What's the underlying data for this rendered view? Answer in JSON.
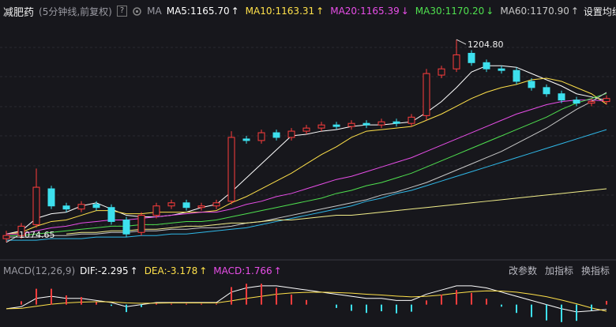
{
  "header": {
    "title": "减肥药",
    "subtitle": "(5分钟线,前复权)",
    "help": "?",
    "ma_label": "MA",
    "ma_settings": "设置均线"
  },
  "chart_data": [
    {
      "type": "candlestick",
      "open": [
        1077,
        1079,
        1086,
        1109,
        1098,
        1096,
        1099,
        1097,
        1089,
        1081,
        1092,
        1098,
        1100,
        1097,
        1098,
        1101,
        1141,
        1140,
        1145,
        1142,
        1146,
        1148,
        1150,
        1149,
        1151,
        1150,
        1152,
        1151,
        1156,
        1182,
        1186,
        1196,
        1190,
        1186,
        1185,
        1178,
        1174,
        1170,
        1166,
        1164,
        1165
      ],
      "high": [
        1082,
        1087,
        1122,
        1111,
        1100,
        1101,
        1101,
        1099,
        1091,
        1094,
        1100,
        1102,
        1102,
        1100,
        1102,
        1146,
        1143,
        1147,
        1147,
        1148,
        1150,
        1152,
        1152,
        1153,
        1153,
        1154,
        1154,
        1157,
        1186,
        1188,
        1204.8,
        1198,
        1192,
        1188,
        1187,
        1180,
        1176,
        1172,
        1168,
        1167,
        1169
      ],
      "low": [
        1074.65,
        1077,
        1084,
        1096,
        1094,
        1094,
        1095,
        1086,
        1078,
        1079,
        1090,
        1096,
        1095,
        1095,
        1096,
        1099,
        1138,
        1138,
        1140,
        1140,
        1144,
        1146,
        1147,
        1147,
        1148,
        1148,
        1149,
        1149,
        1153,
        1180,
        1184,
        1188,
        1184,
        1183,
        1176,
        1172,
        1168,
        1164,
        1162,
        1162,
        1163
      ],
      "close": [
        1079,
        1085,
        1110,
        1098,
        1096,
        1099,
        1097,
        1088,
        1080,
        1092,
        1098,
        1100,
        1097,
        1098,
        1100,
        1142,
        1140,
        1145,
        1142,
        1146,
        1148,
        1150,
        1149,
        1151,
        1150,
        1152,
        1151,
        1155,
        1183,
        1186,
        1195,
        1190,
        1186,
        1185,
        1178,
        1174,
        1170,
        1166,
        1164,
        1165,
        1167
      ],
      "up_color": "#ff3d3d",
      "down_color": "#3de0ee",
      "ylim": [
        1072,
        1215
      ],
      "max_label": "1204.80",
      "min_label": "1074.65",
      "series": [
        {
          "name": "MA5:1165.70",
          "arrow": "↑",
          "color": "#ffffff",
          "values": [
            1080,
            1082,
            1090,
            1093,
            1094,
            1098,
            1100,
            1096,
            1092,
            1091,
            1091,
            1092,
            1094,
            1097,
            1099,
            1107,
            1116,
            1125,
            1134,
            1143,
            1144,
            1146,
            1147,
            1149,
            1150,
            1150,
            1151,
            1152,
            1158,
            1165,
            1174,
            1184,
            1188,
            1188,
            1187,
            1183,
            1179,
            1175,
            1170,
            1168,
            1165.7
          ]
        },
        {
          "name": "MA10:1163.31",
          "arrow": "↑",
          "color": "#ffe14a",
          "values": [
            1080,
            1081,
            1085,
            1088,
            1089,
            1092,
            1095,
            1095,
            1093,
            1093,
            1094,
            1094,
            1094,
            1094,
            1095,
            1100,
            1104,
            1109,
            1114,
            1119,
            1125,
            1131,
            1136,
            1142,
            1146,
            1147,
            1148,
            1149,
            1153,
            1157,
            1162,
            1167,
            1171,
            1174,
            1176,
            1179,
            1180,
            1178,
            1174,
            1170,
            1163.31
          ]
        },
        {
          "name": "MA20:1165.39",
          "arrow": "↓",
          "color": "#e84ee8",
          "values": [
            1080,
            1080,
            1082,
            1084,
            1085,
            1087,
            1088,
            1089,
            1089,
            1090,
            1091,
            1092,
            1093,
            1094,
            1094,
            1096,
            1099,
            1101,
            1104,
            1106,
            1109,
            1112,
            1115,
            1117,
            1120,
            1123,
            1126,
            1129,
            1133,
            1137,
            1141,
            1145,
            1149,
            1153,
            1157,
            1160,
            1163,
            1165,
            1166,
            1166,
            1165.39
          ]
        },
        {
          "name": "MA30:1170.20",
          "arrow": "↓",
          "color": "#4fe04f",
          "values": [
            1079,
            1079,
            1080,
            1081,
            1082,
            1083,
            1084,
            1085,
            1085,
            1086,
            1086,
            1087,
            1088,
            1088,
            1089,
            1091,
            1093,
            1095,
            1097,
            1099,
            1101,
            1103,
            1106,
            1108,
            1111,
            1113,
            1116,
            1119,
            1123,
            1127,
            1131,
            1135,
            1139,
            1143,
            1147,
            1151,
            1155,
            1160,
            1164,
            1167,
            1170.2
          ]
        },
        {
          "name": "MA60:1170.90",
          "arrow": "↑",
          "color": "#c8c8c8",
          "values": [
            1078,
            1078,
            1078,
            1079,
            1079,
            1080,
            1080,
            1081,
            1081,
            1082,
            1082,
            1083,
            1083,
            1084,
            1084,
            1085,
            1087,
            1088,
            1090,
            1092,
            1094,
            1096,
            1098,
            1100,
            1102,
            1105,
            1107,
            1110,
            1113,
            1117,
            1121,
            1125,
            1129,
            1133,
            1138,
            1143,
            1148,
            1154,
            1160,
            1165,
            1170.9
          ]
        },
        {
          "color": "#2fb8e8",
          "values": [
            1076,
            1076,
            1076,
            1077,
            1077,
            1077,
            1078,
            1078,
            1078,
            1079,
            1079,
            1080,
            1080,
            1081,
            1082,
            1083,
            1084,
            1086,
            1088,
            1090,
            1092,
            1094,
            1096,
            1098,
            1101,
            1103,
            1106,
            1108,
            1111,
            1114,
            1117,
            1120,
            1123,
            1126,
            1129,
            1132,
            1135,
            1138,
            1141,
            1144,
            1147
          ]
        },
        {
          "color": "#f2ee8a",
          "values": [
            null,
            null,
            null,
            null,
            1080,
            1081,
            1081,
            1082,
            1082,
            1083,
            1083,
            1084,
            1085,
            1085,
            1086,
            1087,
            1087,
            1088,
            1089,
            1089,
            1090,
            1091,
            1092,
            1092,
            1093,
            1094,
            1095,
            1096,
            1097,
            1098,
            1099,
            1100,
            1101,
            1102,
            1103,
            1104,
            1105,
            1106,
            1107,
            1108,
            1109
          ]
        }
      ]
    },
    {
      "type": "macd",
      "title": "MACD(12,26,9)",
      "ylim": [
        -10,
        12
      ],
      "buttons": [
        "改参数",
        "加指标",
        "换指标"
      ],
      "series": [
        {
          "name": "DIF:-2.295",
          "arrow": "↑",
          "color": "#ffffff",
          "values": [
            -2,
            -1,
            3,
            4,
            3,
            3,
            2,
            1,
            -1,
            0,
            1,
            1,
            1,
            1,
            1,
            6,
            8,
            9,
            9,
            8,
            7,
            6,
            5,
            4,
            3,
            3,
            2,
            2,
            5,
            7,
            9,
            9,
            8,
            6,
            4,
            2,
            0,
            -2,
            -3.5,
            -3,
            -2.295
          ]
        },
        {
          "name": "DEA:-3.178",
          "arrow": "↑",
          "color": "#ffe14a",
          "values": [
            -2,
            -1.8,
            -0.8,
            0.2,
            0.8,
            1.2,
            1.4,
            1.3,
            0.8,
            0.6,
            0.7,
            0.8,
            0.8,
            0.8,
            0.8,
            1.8,
            3,
            4,
            5,
            5.6,
            5.9,
            6,
            5.8,
            5.5,
            5,
            4.6,
            4.1,
            3.7,
            4,
            4.6,
            5.5,
            6.2,
            6.6,
            6.5,
            6,
            5,
            3.8,
            2.2,
            0.4,
            -1.6,
            -3.178
          ]
        },
        {
          "name": "MACD:1.766",
          "arrow": "↑",
          "color": "#e84ee8",
          "up_color": "#ff3d3d",
          "down_color": "#3de0ee",
          "values": [
            0,
            1.6,
            7.6,
            7.6,
            4.4,
            3.6,
            1.2,
            -0.6,
            -3.6,
            -1.2,
            0.6,
            0.4,
            0.4,
            0.4,
            0.4,
            8.4,
            10,
            10,
            8,
            4.8,
            2.2,
            0,
            -1.6,
            -3,
            -4,
            -3.2,
            -4.2,
            -3.4,
            2,
            4.8,
            7,
            5.6,
            2.8,
            -1,
            -4,
            -6,
            -7.6,
            -8.4,
            -7.8,
            -2.8,
            1.766
          ]
        }
      ]
    }
  ]
}
